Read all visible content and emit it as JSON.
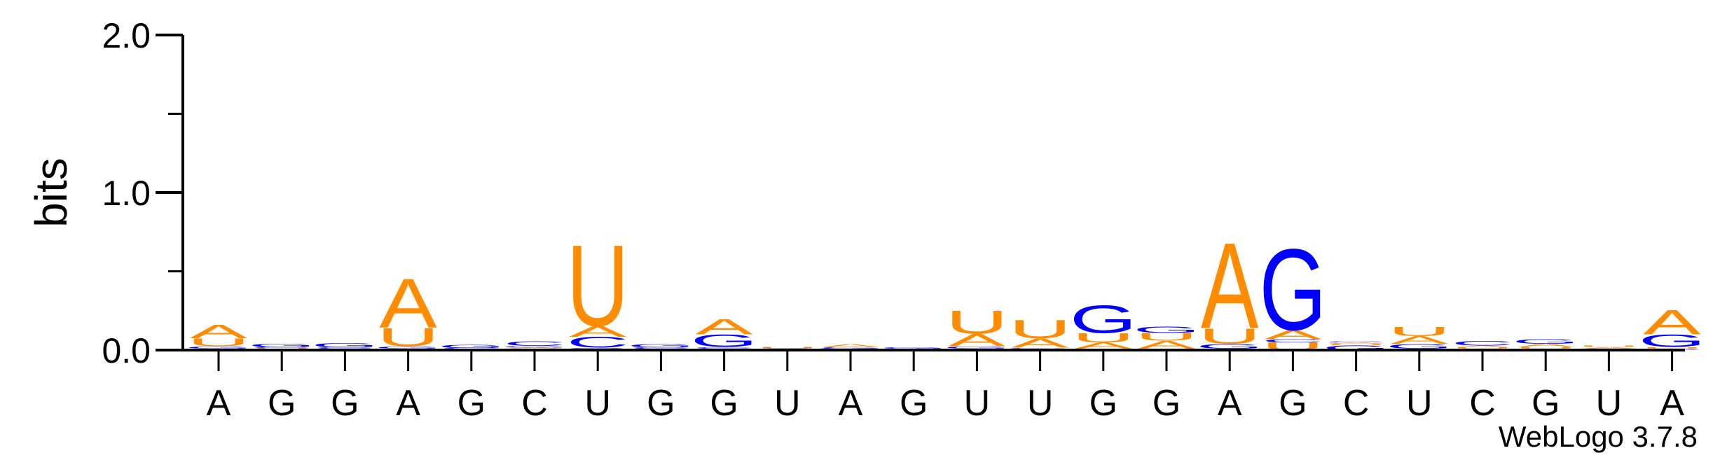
{
  "chart_data": {
    "type": "sequence-logo",
    "ylabel": "bits",
    "ylim": [
      0,
      2.0
    ],
    "yticks": [
      "0.0",
      "1.0",
      "2.0"
    ],
    "colors": {
      "A": "#ff8c00",
      "U": "#ff8c00",
      "G": "#0000ff",
      "C": "#0000ff"
    },
    "positions": [
      {
        "label": "A",
        "stack": [
          {
            "l": "C",
            "h": 0.01
          },
          {
            "l": "G",
            "h": 0.015
          },
          {
            "l": "U",
            "h": 0.05
          },
          {
            "l": "A",
            "h": 0.09
          }
        ]
      },
      {
        "label": "G",
        "stack": [
          {
            "l": "A",
            "h": 0.005
          },
          {
            "l": "U",
            "h": 0.008
          },
          {
            "l": "C",
            "h": 0.008
          },
          {
            "l": "G",
            "h": 0.02
          }
        ]
      },
      {
        "label": "G",
        "stack": [
          {
            "l": "A",
            "h": 0.005
          },
          {
            "l": "U",
            "h": 0.005
          },
          {
            "l": "C",
            "h": 0.008
          },
          {
            "l": "G",
            "h": 0.025
          }
        ]
      },
      {
        "label": "A",
        "stack": [
          {
            "l": "C",
            "h": 0.01
          },
          {
            "l": "G",
            "h": 0.015
          },
          {
            "l": "U",
            "h": 0.12
          },
          {
            "l": "A",
            "h": 0.32
          }
        ]
      },
      {
        "label": "G",
        "stack": [
          {
            "l": "A",
            "h": 0.004
          },
          {
            "l": "U",
            "h": 0.004
          },
          {
            "l": "C",
            "h": 0.006
          },
          {
            "l": "G",
            "h": 0.02
          }
        ]
      },
      {
        "label": "C",
        "stack": [
          {
            "l": "U",
            "h": 0.008
          },
          {
            "l": "A",
            "h": 0.008
          },
          {
            "l": "G",
            "h": 0.01
          },
          {
            "l": "C",
            "h": 0.03
          }
        ]
      },
      {
        "label": "U",
        "stack": [
          {
            "l": "G",
            "h": 0.015
          },
          {
            "l": "C",
            "h": 0.07
          },
          {
            "l": "A",
            "h": 0.07
          },
          {
            "l": "U",
            "h": 0.53
          }
        ]
      },
      {
        "label": "G",
        "stack": [
          {
            "l": "A",
            "h": 0.005
          },
          {
            "l": "U",
            "h": 0.005
          },
          {
            "l": "C",
            "h": 0.008
          },
          {
            "l": "G",
            "h": 0.02
          }
        ]
      },
      {
        "label": "G",
        "stack": [
          {
            "l": "U",
            "h": 0.01
          },
          {
            "l": "C",
            "h": 0.01
          },
          {
            "l": "G",
            "h": 0.08
          },
          {
            "l": "A",
            "h": 0.1
          }
        ]
      },
      {
        "label": "U",
        "stack": [
          {
            "l": "A",
            "h": 0.004
          },
          {
            "l": "G",
            "h": 0.004
          },
          {
            "l": "C",
            "h": 0.004
          },
          {
            "l": "U",
            "h": 0.01
          }
        ]
      },
      {
        "label": "A",
        "stack": [
          {
            "l": "U",
            "h": 0.006
          },
          {
            "l": "G",
            "h": 0.006
          },
          {
            "l": "C",
            "h": 0.006
          },
          {
            "l": "A",
            "h": 0.02
          }
        ]
      },
      {
        "label": "G",
        "stack": [
          {
            "l": "A",
            "h": 0.003
          },
          {
            "l": "U",
            "h": 0.003
          },
          {
            "l": "C",
            "h": 0.003
          },
          {
            "l": "G",
            "h": 0.008
          }
        ]
      },
      {
        "label": "U",
        "stack": [
          {
            "l": "C",
            "h": 0.01
          },
          {
            "l": "G",
            "h": 0.015
          },
          {
            "l": "A",
            "h": 0.08
          },
          {
            "l": "U",
            "h": 0.15
          }
        ]
      },
      {
        "label": "U",
        "stack": [
          {
            "l": "C",
            "h": 0.005
          },
          {
            "l": "G",
            "h": 0.01
          },
          {
            "l": "A",
            "h": 0.06
          },
          {
            "l": "U",
            "h": 0.12
          }
        ]
      },
      {
        "label": "G",
        "stack": [
          {
            "l": "C",
            "h": 0.01
          },
          {
            "l": "A",
            "h": 0.04
          },
          {
            "l": "U",
            "h": 0.06
          },
          {
            "l": "G",
            "h": 0.18
          }
        ]
      },
      {
        "label": "G",
        "stack": [
          {
            "l": "C",
            "h": 0.01
          },
          {
            "l": "A",
            "h": 0.05
          },
          {
            "l": "U",
            "h": 0.05
          },
          {
            "l": "G",
            "h": 0.04
          }
        ]
      },
      {
        "label": "A",
        "stack": [
          {
            "l": "C",
            "h": 0.01
          },
          {
            "l": "G",
            "h": 0.03
          },
          {
            "l": "U",
            "h": 0.1
          },
          {
            "l": "A",
            "h": 0.56
          }
        ]
      },
      {
        "label": "G",
        "stack": [
          {
            "l": "U",
            "h": 0.05
          },
          {
            "l": "C",
            "h": 0.02
          },
          {
            "l": "A",
            "h": 0.06
          },
          {
            "l": "G",
            "h": 0.53
          }
        ]
      },
      {
        "label": "C",
        "stack": [
          {
            "l": "G",
            "h": 0.03
          },
          {
            "l": "U",
            "h": 0.01
          },
          {
            "l": "A",
            "h": 0.01
          },
          {
            "l": "C",
            "h": 0.005
          }
        ]
      },
      {
        "label": "U",
        "stack": [
          {
            "l": "C",
            "h": 0.01
          },
          {
            "l": "G",
            "h": 0.03
          },
          {
            "l": "A",
            "h": 0.05
          },
          {
            "l": "U",
            "h": 0.06
          }
        ]
      },
      {
        "label": "C",
        "stack": [
          {
            "l": "G",
            "h": 0.01
          },
          {
            "l": "U",
            "h": 0.01
          },
          {
            "l": "A",
            "h": 0.01
          },
          {
            "l": "C",
            "h": 0.03
          }
        ]
      },
      {
        "label": "G",
        "stack": [
          {
            "l": "C",
            "h": 0.01
          },
          {
            "l": "U",
            "h": 0.01
          },
          {
            "l": "A",
            "h": 0.02
          },
          {
            "l": "G",
            "h": 0.03
          }
        ]
      },
      {
        "label": "U",
        "stack": [
          {
            "l": "G",
            "h": 0.005
          },
          {
            "l": "C",
            "h": 0.005
          },
          {
            "l": "A",
            "h": 0.01
          },
          {
            "l": "U",
            "h": 0.01
          }
        ]
      },
      {
        "label": "A",
        "stack": [
          {
            "l": "C",
            "h": 0.01
          },
          {
            "l": "U",
            "h": 0.01
          },
          {
            "l": "G",
            "h": 0.08
          },
          {
            "l": "A",
            "h": 0.16
          }
        ]
      }
    ]
  },
  "footer": {
    "credit": "WebLogo 3.7.8"
  }
}
